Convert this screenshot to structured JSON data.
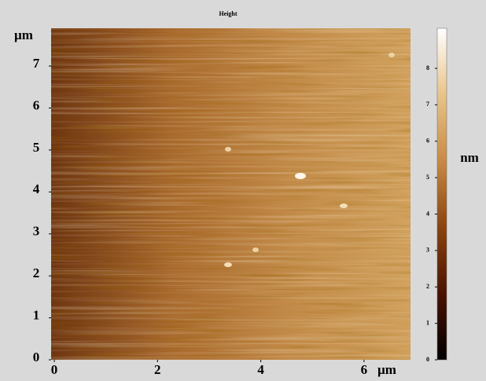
{
  "chart_data": {
    "type": "image",
    "title": "Height",
    "x_label": "µm",
    "y_label": "µm",
    "xlim": [
      0,
      6.9
    ],
    "xticks": [
      0,
      2,
      4,
      6
    ],
    "ylim": [
      0,
      7.9
    ],
    "yticks": [
      0,
      1,
      2,
      3,
      4,
      5,
      6,
      7
    ],
    "image_colors": [
      "#6e3510",
      "#a8692c",
      "#c28a48",
      "#d0a05c"
    ],
    "colorbar": {
      "label": "nm",
      "lim": [
        0,
        9.1
      ],
      "ticks": [
        0,
        1,
        2,
        3,
        4,
        5,
        6,
        7,
        8
      ],
      "colors": [
        "#000000",
        "#4a1200",
        "#8a4410",
        "#c88a44",
        "#e8c48a",
        "#ffffff"
      ]
    }
  }
}
